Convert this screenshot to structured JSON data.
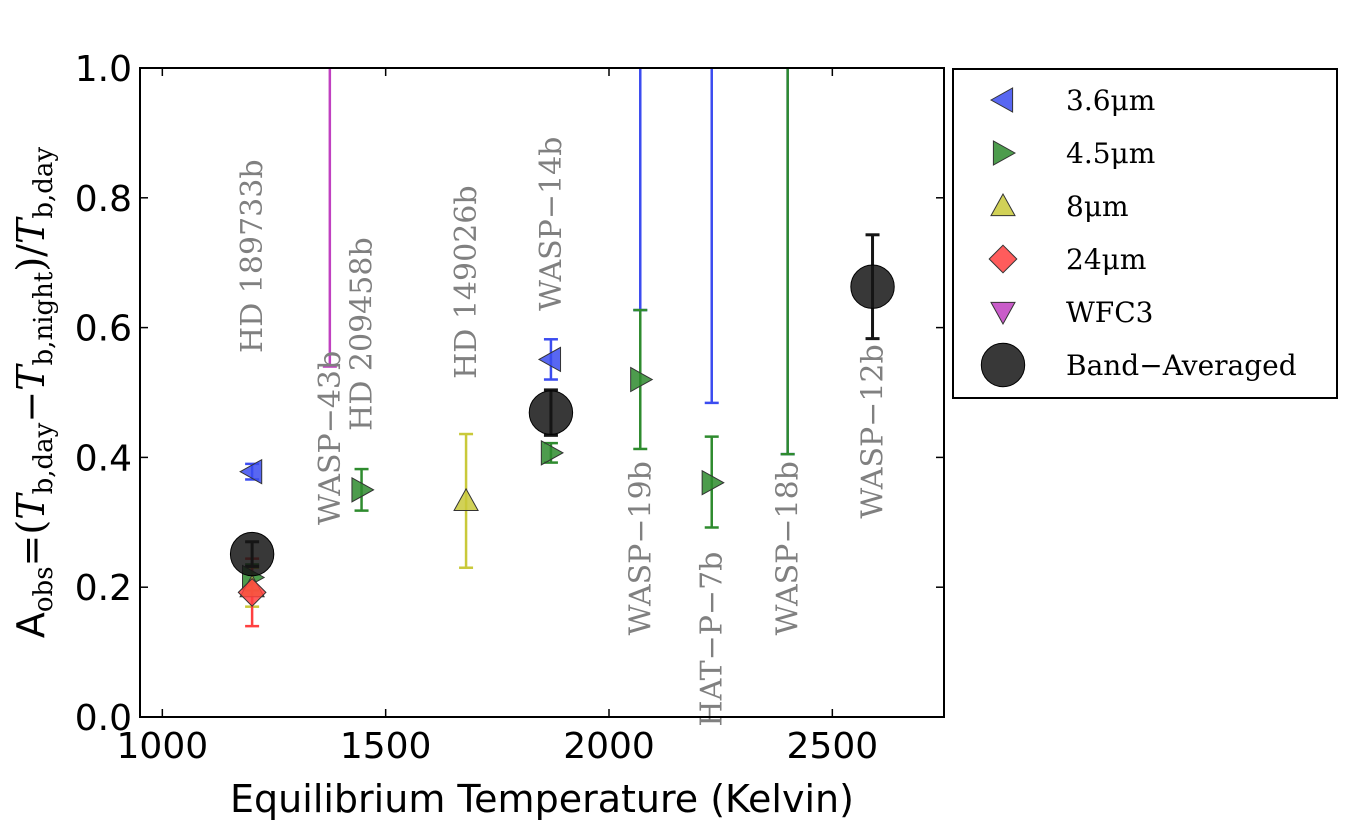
{
  "chart_data": {
    "type": "scatter",
    "title": "",
    "xlabel": "Equilibrium Temperature (Kelvin)",
    "ylabel": {
      "prefix": "A",
      "prefix_sub": "obs",
      "eq": "=(",
      "t1": "T",
      "t1_sub": "b,day",
      "minus": "−",
      "t2": "T",
      "t2_sub": "b,night",
      "close": ")/",
      "t3": "T",
      "t3_sub": "b,day"
    },
    "xlim": [
      950,
      2750
    ],
    "ylim": [
      0.0,
      1.0
    ],
    "xticks": [
      1000,
      1500,
      2000,
      2500
    ],
    "xtick_labels": [
      "1000",
      "1500",
      "2000",
      "2500"
    ],
    "yticks": [
      0.0,
      0.2,
      0.4,
      0.6,
      0.8,
      1.0
    ],
    "ytick_labels": [
      "0.0",
      "0.2",
      "0.4",
      "0.6",
      "0.8",
      "1.0"
    ],
    "grid": false,
    "legend_position": "outside-right-top",
    "series": [
      {
        "name": "3.6μm",
        "marker": "triangle-left",
        "color": "#3b4cf0",
        "points": [
          {
            "x": 1201,
            "y": 0.378,
            "ylo": 0.366,
            "yhi": 0.39
          },
          {
            "x": 1870,
            "y": 0.551,
            "ylo": 0.52,
            "yhi": 0.582
          },
          {
            "x": 2070,
            "y": 1.02,
            "ylo": 0.627,
            "yhi": 1.05
          },
          {
            "x": 2230,
            "y": 1.02,
            "ylo": 0.484,
            "yhi": 1.05
          },
          {
            "x": 2400,
            "y": 1.02,
            "ylo": 0.405,
            "yhi": 1.05
          }
        ]
      },
      {
        "name": "4.5μm",
        "marker": "triangle-right",
        "color": "#2e8b2e",
        "points": [
          {
            "x": 1201,
            "y": 0.215,
            "ylo": 0.195,
            "yhi": 0.235
          },
          {
            "x": 1446,
            "y": 0.35,
            "ylo": 0.318,
            "yhi": 0.382
          },
          {
            "x": 1870,
            "y": 0.407,
            "ylo": 0.392,
            "yhi": 0.422
          },
          {
            "x": 2070,
            "y": 0.52,
            "ylo": 0.413,
            "yhi": 0.627
          },
          {
            "x": 2230,
            "y": 0.361,
            "ylo": 0.292,
            "yhi": 0.432
          },
          {
            "x": 2400,
            "y": 1.02,
            "ylo": 0.405,
            "yhi": 1.05
          }
        ]
      },
      {
        "name": "8μm",
        "marker": "triangle-up",
        "color": "#c9c93a",
        "points": [
          {
            "x": 1201,
            "y": 0.2,
            "ylo": 0.17,
            "yhi": 0.23
          },
          {
            "x": 1680,
            "y": 0.333,
            "ylo": 0.23,
            "yhi": 0.436
          }
        ]
      },
      {
        "name": "24μm",
        "marker": "diamond",
        "color": "#ff4040",
        "points": [
          {
            "x": 1201,
            "y": 0.192,
            "ylo": 0.14,
            "yhi": 0.244
          }
        ]
      },
      {
        "name": "WFC3",
        "marker": "triangle-down",
        "color": "#c040c0",
        "points": [
          {
            "x": 1375,
            "y": 1.02,
            "ylo": 0.54,
            "yhi": 1.05
          }
        ]
      },
      {
        "name": "Band−Averaged",
        "marker": "circle",
        "color": "#151515",
        "points": [
          {
            "x": 1201,
            "y": 0.251,
            "ylo": 0.232,
            "yhi": 0.27
          },
          {
            "x": 1870,
            "y": 0.469,
            "ylo": 0.434,
            "yhi": 0.504
          },
          {
            "x": 2590,
            "y": 0.663,
            "ylo": 0.583,
            "yhi": 0.743
          }
        ]
      }
    ],
    "annotations": [
      {
        "text": "HD 189733b",
        "x": 1201,
        "y": 0.71
      },
      {
        "text": "WASP−43b",
        "x": 1375,
        "y": 0.43
      },
      {
        "text": "HD 209458b",
        "x": 1446,
        "y": 0.59
      },
      {
        "text": "HD 149026b",
        "x": 1680,
        "y": 0.67
      },
      {
        "text": "WASP−14b",
        "x": 1870,
        "y": 0.76
      },
      {
        "text": "WASP−19b",
        "x": 2070,
        "y": 0.26
      },
      {
        "text": "HAT−P−7b",
        "x": 2230,
        "y": 0.12
      },
      {
        "text": "WASP−18b",
        "x": 2400,
        "y": 0.26
      },
      {
        "text": "WASP−12b",
        "x": 2590,
        "y": 0.44
      }
    ]
  }
}
